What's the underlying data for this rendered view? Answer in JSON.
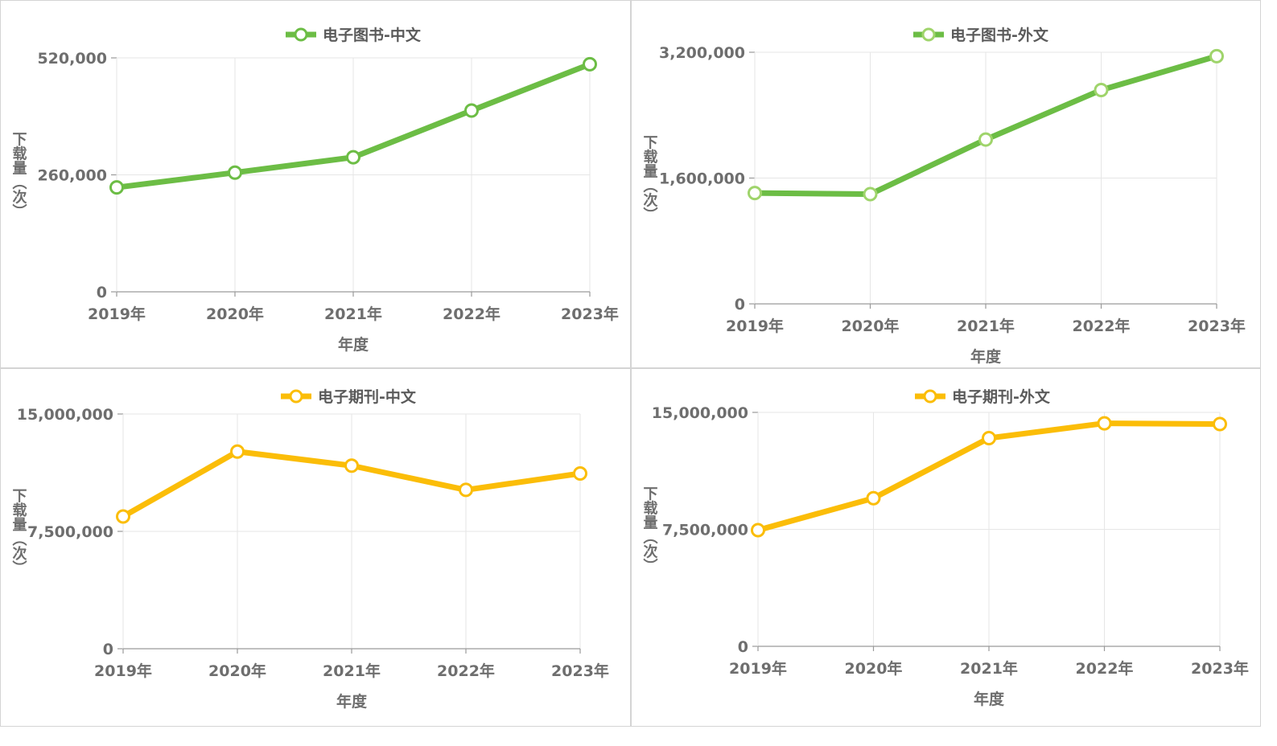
{
  "colors": {
    "green": "#6cbd45",
    "green_light": "#9fd46b",
    "yellow": "#fbbd08"
  },
  "chart_data": [
    {
      "type": "line",
      "legend": "电子图书-中文",
      "color": "#6cbd45",
      "categories": [
        "2019年",
        "2020年",
        "2021年",
        "2022年",
        "2023年"
      ],
      "series": [
        {
          "name": "电子图书-中文",
          "values": [
            232000,
            265000,
            299000,
            403000,
            506000
          ]
        }
      ],
      "yticks": [
        "0",
        "260,000",
        "520,000"
      ],
      "ylim": [
        0,
        520000
      ],
      "xlabel": "年度",
      "ylabel": "下载量（次）",
      "grid": true
    },
    {
      "type": "line",
      "legend": "电子图书-外文",
      "color": "#6cbd45",
      "categories": [
        "2019年",
        "2020年",
        "2021年",
        "2022年",
        "2023年"
      ],
      "series": [
        {
          "name": "电子图书-外文",
          "values": [
            1410000,
            1395000,
            2090000,
            2720000,
            3150000
          ]
        }
      ],
      "yticks": [
        "0",
        "1,600,000",
        "3,200,000"
      ],
      "ylim": [
        0,
        3200000
      ],
      "xlabel": "年度",
      "ylabel": "下载量（次）",
      "grid": true
    },
    {
      "type": "line",
      "legend": "电子期刊-中文",
      "color": "#fbbd08",
      "categories": [
        "2019年",
        "2020年",
        "2021年",
        "2022年",
        "2023年"
      ],
      "series": [
        {
          "name": "电子期刊-中文",
          "values": [
            8450000,
            12600000,
            11700000,
            10150000,
            11200000
          ]
        }
      ],
      "yticks": [
        "0",
        "7,500,000",
        "15,000,000"
      ],
      "ylim": [
        0,
        15000000
      ],
      "xlabel": "年度",
      "ylabel": "下载量（次）",
      "grid": true
    },
    {
      "type": "line",
      "legend": "电子期刊-外文",
      "color": "#fbbd08",
      "categories": [
        "2019年",
        "2020年",
        "2021年",
        "2022年",
        "2023年"
      ],
      "series": [
        {
          "name": "电子期刊-外文",
          "values": [
            7450000,
            9500000,
            13350000,
            14300000,
            14250000
          ]
        }
      ],
      "yticks": [
        "0",
        "7,500,000",
        "15,000,000"
      ],
      "ylim": [
        0,
        15000000
      ],
      "xlabel": "年度",
      "ylabel": "下载量（次）",
      "grid": true
    }
  ]
}
